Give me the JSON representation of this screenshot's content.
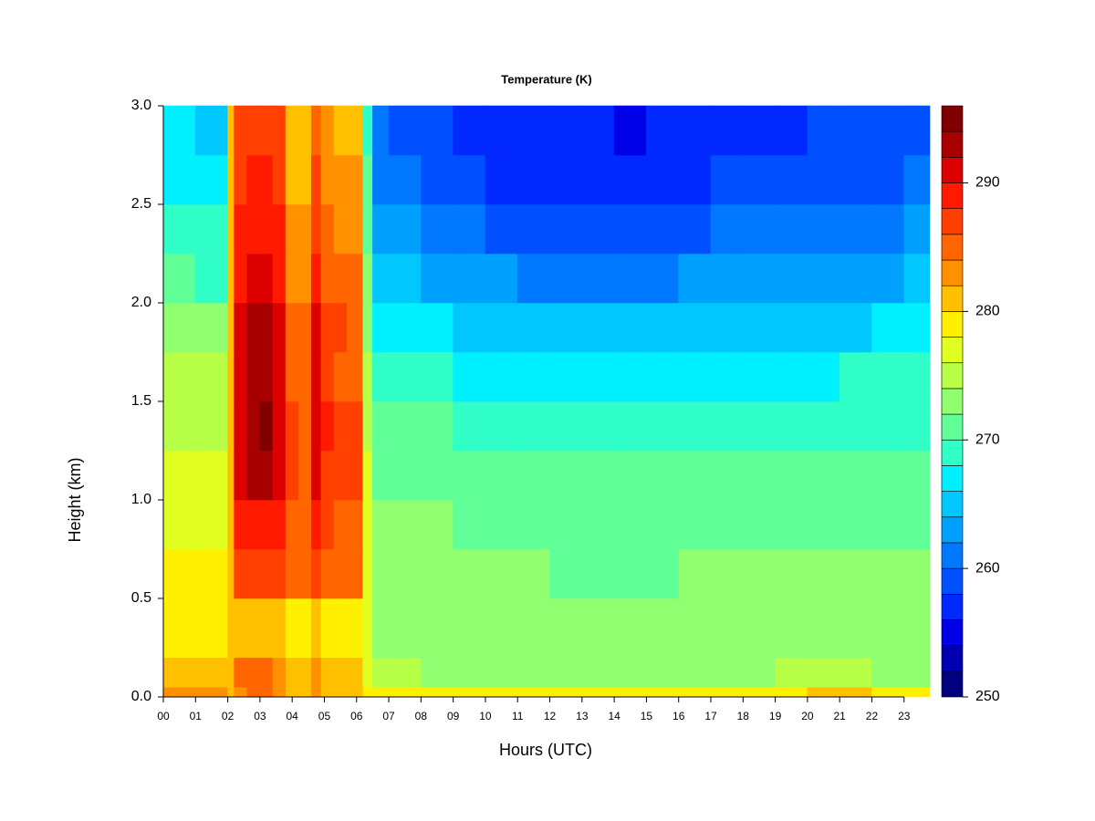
{
  "chart_data": {
    "type": "heatmap",
    "title": "Temperature (K)",
    "xlabel": "Hours (UTC)",
    "ylabel": "Height (km)",
    "xlim": [
      0,
      23.8
    ],
    "ylim": [
      0,
      3
    ],
    "xticks": [
      {
        "value": 0,
        "label": "00"
      },
      {
        "value": 1,
        "label": "01"
      },
      {
        "value": 2,
        "label": "02"
      },
      {
        "value": 3,
        "label": "03"
      },
      {
        "value": 4,
        "label": "04"
      },
      {
        "value": 5,
        "label": "05"
      },
      {
        "value": 6,
        "label": "06"
      },
      {
        "value": 7,
        "label": "07"
      },
      {
        "value": 8,
        "label": "08"
      },
      {
        "value": 9,
        "label": "09"
      },
      {
        "value": 10,
        "label": "10"
      },
      {
        "value": 11,
        "label": "11"
      },
      {
        "value": 12,
        "label": "12"
      },
      {
        "value": 13,
        "label": "13"
      },
      {
        "value": 14,
        "label": "14"
      },
      {
        "value": 15,
        "label": "15"
      },
      {
        "value": 16,
        "label": "16"
      },
      {
        "value": 17,
        "label": "17"
      },
      {
        "value": 18,
        "label": "18"
      },
      {
        "value": 19,
        "label": "19"
      },
      {
        "value": 20,
        "label": "20"
      },
      {
        "value": 21,
        "label": "21"
      },
      {
        "value": 22,
        "label": "22"
      },
      {
        "value": 23,
        "label": "23"
      }
    ],
    "yticks": [
      {
        "value": 0,
        "label": "0.0"
      },
      0.5,
      {
        "value": 1,
        "label": "1.0"
      },
      1.5,
      {
        "value": 2,
        "label": "2.0"
      },
      2.5,
      {
        "value": 3,
        "label": "3.0"
      }
    ],
    "x_edges": [
      0,
      1,
      2,
      2.2,
      2.6,
      3.0,
      3.4,
      3.8,
      4.2,
      4.6,
      4.9,
      5.3,
      5.7,
      6.2,
      6.5,
      7,
      8,
      9,
      10,
      11,
      12,
      13,
      14,
      15,
      16,
      17,
      18,
      19,
      20,
      21,
      22,
      23,
      23.8
    ],
    "y_edges": [
      0,
      0.05,
      0.2,
      0.5,
      0.75,
      1.0,
      1.25,
      1.5,
      1.75,
      2.0,
      2.25,
      2.5,
      2.75,
      3.0
    ],
    "z": [
      [
        283,
        282,
        281,
        283,
        284,
        284,
        282,
        281,
        281,
        283,
        281,
        281,
        281,
        278,
        279,
        279,
        279,
        279,
        279,
        279,
        279,
        279,
        279,
        279,
        279,
        279,
        279,
        279,
        280,
        280,
        279,
        279
      ],
      [
        281,
        280,
        280,
        284,
        285,
        285,
        282,
        280,
        280,
        282,
        280,
        280,
        280,
        277,
        274,
        274,
        273,
        273,
        273,
        273,
        273,
        273,
        273,
        273,
        273,
        273,
        273,
        274,
        274,
        274,
        273,
        273
      ],
      [
        279,
        279,
        280,
        281,
        281,
        281,
        280,
        279,
        279,
        280,
        279,
        279,
        279,
        276,
        273,
        273,
        273,
        273,
        273,
        273,
        273,
        272,
        272,
        272,
        272,
        273,
        273,
        273,
        273,
        273,
        273,
        273
      ],
      [
        278,
        278,
        280,
        286,
        287,
        287,
        286,
        284,
        284,
        287,
        285,
        284,
        285,
        277,
        272,
        272,
        272,
        272,
        272,
        272,
        271,
        271,
        271,
        271,
        272,
        272,
        272,
        272,
        272,
        272,
        272,
        272
      ],
      [
        277,
        277,
        280,
        288,
        289,
        289,
        288,
        285,
        284,
        289,
        286,
        285,
        285,
        276,
        272,
        272,
        272,
        271,
        271,
        271,
        271,
        271,
        271,
        271,
        271,
        271,
        271,
        271,
        271,
        271,
        271,
        271
      ],
      [
        276,
        276,
        280,
        290,
        292,
        293,
        290,
        286,
        285,
        290,
        287,
        286,
        286,
        276,
        271,
        271,
        271,
        271,
        270,
        270,
        270,
        270,
        270,
        270,
        270,
        270,
        270,
        270,
        270,
        270,
        270,
        270
      ],
      [
        275,
        275,
        280,
        290,
        293,
        294,
        290,
        286,
        285,
        290,
        288,
        286,
        286,
        275,
        270,
        270,
        270,
        269,
        269,
        269,
        269,
        269,
        269,
        269,
        269,
        269,
        269,
        269,
        269,
        269,
        269,
        269
      ],
      [
        274,
        274,
        280,
        290,
        292,
        292,
        290,
        285,
        284,
        290,
        287,
        285,
        285,
        274,
        269,
        269,
        268,
        267,
        267,
        267,
        267,
        267,
        267,
        267,
        267,
        267,
        267,
        267,
        267,
        268,
        268,
        268
      ],
      [
        273,
        272,
        280,
        291,
        292,
        292,
        291,
        285,
        284,
        290,
        287,
        286,
        285,
        273,
        267,
        267,
        266,
        265,
        264,
        264,
        264,
        264,
        264,
        264,
        264,
        265,
        265,
        265,
        265,
        265,
        266,
        266
      ],
      [
        270,
        269,
        280,
        289,
        290,
        290,
        289,
        283,
        283,
        288,
        285,
        284,
        284,
        272,
        265,
        264,
        263,
        262,
        262,
        261,
        261,
        261,
        261,
        261,
        262,
        262,
        262,
        263,
        263,
        263,
        263,
        264
      ],
      [
        268,
        268,
        280,
        288,
        289,
        289,
        288,
        282,
        282,
        287,
        284,
        283,
        283,
        271,
        263,
        262,
        261,
        260,
        259,
        259,
        259,
        259,
        259,
        259,
        259,
        260,
        260,
        260,
        261,
        261,
        261,
        262
      ],
      [
        267,
        266,
        280,
        287,
        288,
        288,
        287,
        281,
        281,
        286,
        283,
        282,
        282,
        270,
        261,
        260,
        259,
        258,
        257,
        257,
        257,
        257,
        256,
        257,
        257,
        258,
        258,
        258,
        259,
        259,
        259,
        260
      ],
      [
        266,
        265,
        280,
        286,
        287,
        287,
        286,
        280,
        280,
        285,
        282,
        281,
        281,
        268,
        260,
        259,
        258,
        257,
        256,
        256,
        256,
        256,
        255,
        256,
        256,
        257,
        257,
        257,
        258,
        258,
        258,
        259
      ]
    ],
    "levels": [
      250,
      252,
      254,
      256,
      258,
      260,
      262,
      264,
      266,
      268,
      270,
      272,
      274,
      276,
      278,
      280,
      282,
      284,
      286,
      288,
      290,
      292,
      294,
      296
    ],
    "colors": [
      "#000080",
      "#0000B0",
      "#0000E8",
      "#0028FF",
      "#0050FF",
      "#0078FF",
      "#00A0FF",
      "#00C8FF",
      "#00F0FF",
      "#30FFC8",
      "#60FF98",
      "#90FF70",
      "#B8FF48",
      "#E0FF20",
      "#FFF000",
      "#FFC000",
      "#FF9000",
      "#FF6600",
      "#FF4000",
      "#FF1A00",
      "#DD0000",
      "#A80000",
      "#800000"
    ],
    "zticks": [
      250,
      260,
      270,
      280,
      290
    ]
  }
}
